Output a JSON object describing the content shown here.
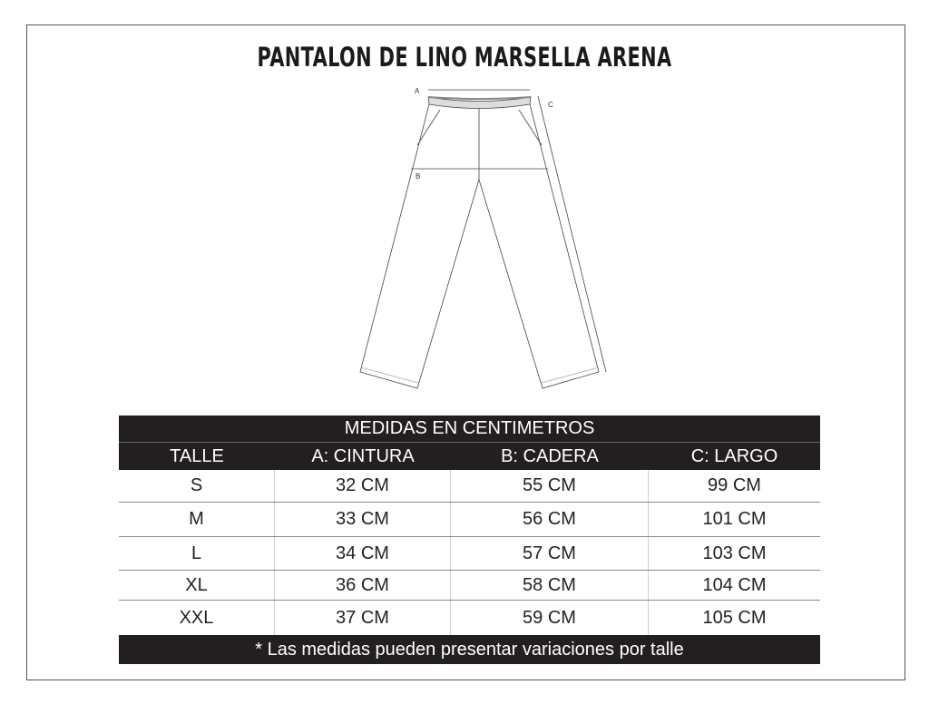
{
  "title": "PANTALON DE LINO MARSELLA ARENA",
  "diagram": {
    "labels": {
      "a": "A",
      "b": "B",
      "c": "C"
    }
  },
  "table": {
    "banner": "MEDIDAS EN CENTIMETROS",
    "headers": [
      "TALLE",
      "A: CINTURA",
      "B: CADERA",
      "C: LARGO"
    ],
    "rows": [
      [
        "S",
        "32 CM",
        "55 CM",
        "99 CM"
      ],
      [
        "M",
        "33 CM",
        "56 CM",
        "101 CM"
      ],
      [
        "L",
        "34 CM",
        "57 CM",
        "103 CM"
      ],
      [
        "XL",
        "36 CM",
        "58 CM",
        "104 CM"
      ],
      [
        "XXL",
        "37 CM",
        "59 CM",
        "105 CM"
      ]
    ],
    "footnote": "* Las medidas pueden presentar variaciones por talle"
  },
  "colors": {
    "header_bg": "#231f20",
    "header_text": "#ffffff"
  }
}
